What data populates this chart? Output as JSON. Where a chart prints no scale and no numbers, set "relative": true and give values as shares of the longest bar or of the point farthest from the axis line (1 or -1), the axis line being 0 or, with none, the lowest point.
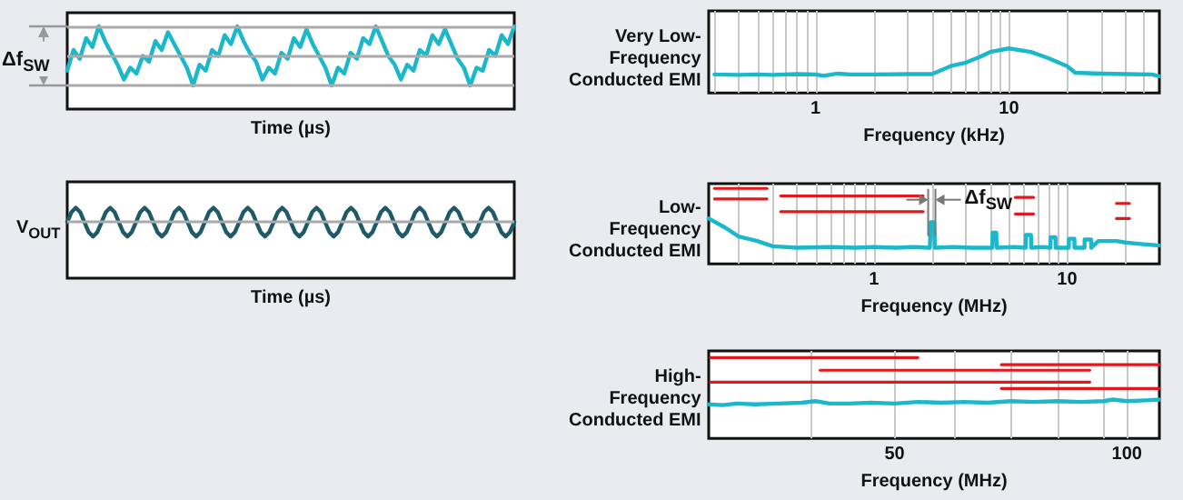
{
  "chart_data": [
    {
      "type": "line",
      "ylabel": "Δf$_{SW}$",
      "xlabel": "Time (µs)",
      "relative": true,
      "categories": [
        null,
        null,
        null,
        null,
        null,
        null,
        null,
        null,
        null,
        null,
        null,
        null,
        null,
        null,
        null,
        null,
        null,
        null,
        null,
        null,
        null,
        null,
        null,
        null,
        null,
        null,
        null,
        null,
        null,
        null,
        null,
        null,
        null,
        null,
        null,
        null,
        null,
        null,
        null,
        null,
        null,
        null,
        null,
        null,
        null,
        null,
        null,
        null,
        null,
        null,
        null,
        null,
        null,
        null,
        null,
        null,
        null,
        null,
        null,
        null,
        null,
        null,
        null,
        null,
        null,
        null,
        null,
        null,
        null,
        null,
        null,
        null
      ],
      "series": [
        {
          "color": "#1bb8cb",
          "values": [
            0.25,
            0.6,
            0.45,
            0.8,
            0.65,
            1.0,
            0.75,
            0.55,
            0.35,
            0.1,
            0.3,
            0.2,
            0.5,
            0.4,
            0.75,
            0.6,
            0.9,
            0.7,
            0.5,
            0.3,
            0,
            0.35,
            0.25,
            0.6,
            0.5,
            0.85,
            0.7,
            1.0,
            0.75,
            0.55,
            0.4,
            0.1,
            0.3,
            0.2,
            0.55,
            0.45,
            0.8,
            0.65,
            0.95,
            0.7,
            0.5,
            0.3,
            0,
            0.3,
            0.2,
            0.55,
            0.45,
            0.8,
            0.7,
            1.0,
            0.75,
            0.5,
            0.35,
            0.1,
            0.35,
            0.25,
            0.6,
            0.5,
            0.85,
            0.7,
            0.95,
            0.7,
            0.45,
            0.3,
            0,
            0.3,
            0.25,
            0.6,
            0.5,
            0.85,
            0.7,
            1.0
          ]
        }
      ],
      "ref_lines": [
        {
          "axis": "y",
          "value": 1,
          "color": "#aaaaaa"
        },
        {
          "axis": "y",
          "value": 0.5,
          "color": "#aaaaaa"
        },
        {
          "axis": "y",
          "value": 0,
          "color": "#aaaaaa"
        }
      ],
      "marker": "none",
      "grid": false,
      "tick_labels": false
    },
    {
      "type": "line",
      "ylabel": "V$_{OUT}$",
      "xlabel": "Time (µs)",
      "relative": true,
      "categories": [
        null,
        null,
        null,
        null,
        null,
        null,
        null,
        null,
        null,
        null,
        null,
        null,
        null,
        null,
        null,
        null,
        null,
        null,
        null,
        null,
        null,
        null,
        null,
        null,
        null,
        null,
        null,
        null,
        null,
        null,
        null,
        null,
        null,
        null,
        null,
        null,
        null,
        null,
        null,
        null,
        null,
        null,
        null,
        null,
        null,
        null,
        null,
        null,
        null,
        null,
        null,
        null,
        null,
        null,
        null,
        null,
        null,
        null,
        null,
        null,
        null,
        null,
        null,
        null,
        null,
        null,
        null,
        null,
        null,
        null,
        null,
        null,
        null,
        null,
        null,
        null,
        null,
        null,
        null,
        null,
        null,
        null,
        null,
        null,
        null,
        null,
        null,
        null,
        null,
        null,
        null,
        null,
        null,
        null,
        null,
        null,
        null,
        null,
        null,
        null,
        null,
        null,
        null,
        null,
        null
      ],
      "series": [
        {
          "color": "#1e5a68",
          "values": [
            0,
            0.7,
            1,
            0.7,
            0,
            -0.7,
            -1,
            -0.7,
            0,
            0.7,
            1,
            0.7,
            0,
            -0.7,
            -1,
            -0.7,
            0,
            0.7,
            1,
            0.7,
            0,
            -0.7,
            -1,
            -0.7,
            0,
            0.7,
            1,
            0.7,
            0,
            -0.7,
            -1,
            -0.7,
            0,
            0.7,
            1,
            0.7,
            0,
            -0.7,
            -1,
            -0.7,
            0,
            0.7,
            1,
            0.7,
            0,
            -0.7,
            -1,
            -0.7,
            0,
            0.7,
            1,
            0.7,
            0,
            -0.7,
            -1,
            -0.7,
            0,
            0.7,
            1,
            0.7,
            0,
            -0.7,
            -1,
            -0.7,
            0,
            0.7,
            1,
            0.7,
            0,
            -0.7,
            -1,
            -0.7,
            0,
            0.7,
            1,
            0.7,
            0,
            -0.7,
            -1,
            -0.7,
            0,
            0.7,
            1,
            0.7,
            0,
            -0.7,
            -1,
            -0.7,
            0,
            0.7,
            1,
            0.7,
            0,
            -0.7,
            -1,
            -0.7,
            0,
            0.7,
            1,
            0.7,
            0,
            -0.7,
            -1,
            -0.7,
            0
          ]
        }
      ],
      "ref_lines": [
        {
          "axis": "y",
          "value": 0,
          "color": "#aaaaaa"
        }
      ],
      "marker": "none",
      "grid": false,
      "tick_labels": false
    },
    {
      "type": "line",
      "ylabel": "Very Low-\nFrequency\nConducted EMI",
      "xlabel": "Frequency (kHz)",
      "relative": true,
      "log": "x",
      "xlim": [
        0.28,
        60
      ],
      "xticks": [
        {
          "value": 0.3,
          "label": null
        },
        {
          "value": 0.4,
          "label": null
        },
        {
          "value": 0.5,
          "label": null
        },
        {
          "value": 0.6,
          "label": null
        },
        {
          "value": 0.7,
          "label": null
        },
        {
          "value": 0.8,
          "label": null
        },
        {
          "value": 0.9,
          "label": null
        },
        1,
        {
          "value": 2,
          "label": null
        },
        {
          "value": 3,
          "label": null
        },
        {
          "value": 4,
          "label": null
        },
        {
          "value": 5,
          "label": null
        },
        {
          "value": 6,
          "label": null
        },
        {
          "value": 7,
          "label": null
        },
        {
          "value": 8,
          "label": null
        },
        {
          "value": 9,
          "label": null
        },
        10,
        {
          "value": 20,
          "label": null
        },
        {
          "value": 30,
          "label": null
        },
        {
          "value": 40,
          "label": null
        },
        {
          "value": 50,
          "label": null
        }
      ],
      "series": [
        {
          "color": "#1bb8cb",
          "x": [
            0.3,
            0.4,
            0.5,
            0.6,
            0.8,
            1,
            1.1,
            1.3,
            1.5,
            2,
            3,
            4,
            5,
            6,
            7,
            8,
            10,
            13,
            16,
            20,
            22,
            30,
            40,
            55,
            60
          ],
          "values": [
            0.41,
            0.4,
            0.41,
            0.4,
            0.42,
            0.41,
            0.38,
            0.43,
            0.41,
            0.41,
            0.42,
            0.42,
            0.6,
            0.68,
            0.8,
            0.92,
            1.0,
            0.92,
            0.78,
            0.6,
            0.45,
            0.43,
            0.42,
            0.41,
            0.37
          ]
        }
      ],
      "marker": "none",
      "grid": "x",
      "tick_labels": "x"
    },
    {
      "type": "line",
      "ylabel": "Low-\nFrequency\nConducted EMI",
      "xlabel": "Frequency (MHz)",
      "relative": true,
      "log": "x",
      "xlim": [
        0.14,
        30
      ],
      "xticks": [
        {
          "value": 0.2,
          "label": null
        },
        {
          "value": 0.3,
          "label": null
        },
        {
          "value": 0.4,
          "label": null
        },
        {
          "value": 0.5,
          "label": null
        },
        {
          "value": 0.6,
          "label": null
        },
        {
          "value": 0.7,
          "label": null
        },
        {
          "value": 0.8,
          "label": null
        },
        {
          "value": 0.9,
          "label": null
        },
        1,
        {
          "value": 2,
          "label": null
        },
        {
          "value": 3,
          "label": null
        },
        {
          "value": 4,
          "label": null
        },
        {
          "value": 5,
          "label": null
        },
        {
          "value": 6,
          "label": null
        },
        {
          "value": 7,
          "label": null
        },
        {
          "value": 8,
          "label": null
        },
        {
          "value": 9,
          "label": null
        },
        10,
        {
          "value": 20,
          "label": null
        }
      ],
      "series": [
        {
          "color": "#1bb8cb",
          "x": [
            0.14,
            0.17,
            0.2,
            0.25,
            0.3,
            0.4,
            0.6,
            0.8,
            1,
            1.3,
            1.6,
            1.95,
            1.97,
            2.05,
            2.07,
            2.6,
            3.2,
            4.1,
            4.12,
            4.3,
            4.32,
            5.3,
            6.1,
            6.12,
            6.5,
            6.52,
            7.5,
            8.2,
            8.22,
            8.7,
            8.72,
            10.2,
            10.22,
            10.9,
            10.92,
            12.3,
            12.32,
            13.3,
            13.32,
            14.5,
            16,
            18,
            20,
            24,
            30
          ],
          "values": [
            0.6,
            0.48,
            0.36,
            0.3,
            0.23,
            0.21,
            0.22,
            0.21,
            0.22,
            0.21,
            0.22,
            0.21,
            0.55,
            0.55,
            0.21,
            0.22,
            0.21,
            0.21,
            0.41,
            0.41,
            0.21,
            0.22,
            0.21,
            0.38,
            0.38,
            0.21,
            0.22,
            0.21,
            0.35,
            0.35,
            0.21,
            0.21,
            0.33,
            0.33,
            0.21,
            0.21,
            0.32,
            0.32,
            0.21,
            0.3,
            0.3,
            0.3,
            0.28,
            0.26,
            0.24
          ]
        },
        {
          "color": "#e0191c",
          "x": [
            0.15,
            0.28
          ],
          "values": [
            1,
            1
          ]
        },
        {
          "color": "#e0191c",
          "x": [
            0.15,
            0.28
          ],
          "values": [
            0.86,
            0.86
          ]
        },
        {
          "color": "#e0191c",
          "x": [
            0.33,
            1.8
          ],
          "values": [
            0.9,
            0.9
          ]
        },
        {
          "color": "#e0191c",
          "x": [
            0.33,
            1.8
          ],
          "values": [
            0.69,
            0.69
          ]
        },
        {
          "color": "#e0191c",
          "x": [
            5.4,
            6.7
          ],
          "values": [
            0.88,
            0.88
          ]
        },
        {
          "color": "#e0191c",
          "x": [
            5.4,
            6.7
          ],
          "values": [
            0.66,
            0.66
          ]
        },
        {
          "color": "#e0191c",
          "x": [
            18,
            21
          ],
          "values": [
            0.8,
            0.8
          ]
        },
        {
          "color": "#e0191c",
          "x": [
            18,
            21
          ],
          "values": [
            0.6,
            0.6
          ]
        }
      ],
      "annotations": [
        "Δf$_{SW}$"
      ],
      "marker": "none",
      "grid": "x",
      "tick_labels": "x"
    },
    {
      "type": "line",
      "ylabel": "High-\nFrequency\nConducted EMI",
      "xlabel": "Frequency (MHz)",
      "relative": true,
      "xlim": [
        10,
        107
      ],
      "xticks": [
        {
          "value": 32,
          "label": null
        },
        50,
        {
          "value": 63,
          "label": null
        },
        {
          "value": 75,
          "label": null
        },
        {
          "value": 85,
          "label": null
        },
        {
          "value": 95,
          "label": null
        },
        100
      ],
      "series": [
        {
          "color": "#1bb8cb",
          "x": [
            10,
            13,
            16,
            20,
            25,
            30,
            33,
            36,
            40,
            45,
            50,
            55,
            60,
            65,
            70,
            75,
            80,
            85,
            90,
            95,
            97,
            100,
            104,
            107
          ],
          "values": [
            0.41,
            0.4,
            0.42,
            0.41,
            0.42,
            0.43,
            0.45,
            0.42,
            0.42,
            0.43,
            0.42,
            0.44,
            0.43,
            0.44,
            0.43,
            0.45,
            0.44,
            0.45,
            0.44,
            0.45,
            0.47,
            0.45,
            0.46,
            0.47
          ]
        },
        {
          "color": "#e0191c",
          "x": [
            10.4,
            55
          ],
          "values": [
            1,
            1
          ]
        },
        {
          "color": "#e0191c",
          "x": [
            34,
            92
          ],
          "values": [
            0.84,
            0.84
          ]
        },
        {
          "color": "#e0191c",
          "x": [
            73,
            107
          ],
          "values": [
            0.91,
            0.91
          ]
        },
        {
          "color": "#e0191c",
          "x": [
            10.4,
            92
          ],
          "values": [
            0.69,
            0.69
          ]
        },
        {
          "color": "#e0191c",
          "x": [
            73,
            107
          ],
          "values": [
            0.61,
            0.61
          ]
        }
      ],
      "marker": "none",
      "grid": "x",
      "tick_labels": "x"
    }
  ]
}
